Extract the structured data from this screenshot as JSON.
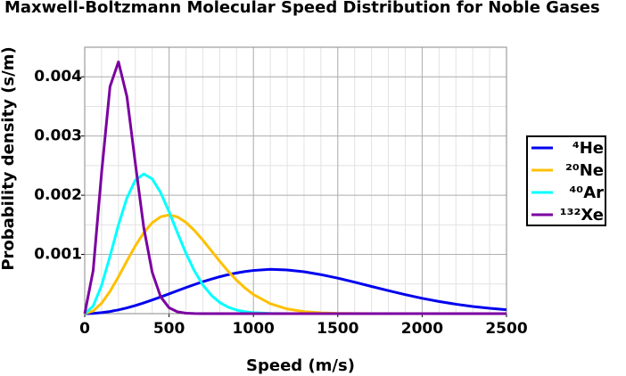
{
  "chart_data": {
    "type": "line",
    "title": "Maxwell-Boltzmann Molecular Speed Distribution for Noble Gases",
    "x_label": "Speed (m/s)",
    "y_label": "Probability density (s/m)",
    "x": [
      0,
      50,
      100,
      150,
      200,
      250,
      300,
      350,
      400,
      450,
      500,
      550,
      600,
      650,
      700,
      750,
      800,
      850,
      900,
      950,
      1000,
      1100,
      1200,
      1300,
      1400,
      1500,
      1600,
      1700,
      1800,
      1900,
      2000,
      2100,
      2200,
      2300,
      2400,
      2500
    ],
    "series": [
      {
        "name": "⁴He",
        "color": "#0000ee",
        "values": [
          0,
          4e-06,
          1.62e-05,
          3.62e-05,
          6.34e-05,
          9.73e-05,
          0.000137,
          0.000182,
          0.00023,
          0.000281,
          0.000334,
          0.000388,
          0.00044,
          0.000491,
          0.000539,
          0.000583,
          0.000623,
          0.000658,
          0.000687,
          0.000711,
          0.000729,
          0.000749,
          0.000737,
          0.000707,
          0.000659,
          0.000599,
          0.000531,
          0.000459,
          0.000388,
          0.000321,
          0.000259,
          0.000205,
          0.000159,
          0.000121,
          9.02e-05,
          6.59e-05
        ]
      },
      {
        "name": "²⁰Ne",
        "color": "#ffc000",
        "values": [
          0,
          4.53e-05,
          0.000176,
          0.000376,
          0.000623,
          0.000889,
          0.001145,
          0.001367,
          0.001535,
          0.001636,
          0.001668,
          0.001633,
          0.001541,
          0.001405,
          0.001241,
          0.001063,
          0.000885,
          0.000716,
          0.000564,
          0.000433,
          0.000323,
          0.000168,
          7.89e-05,
          3.38e-05,
          1.32e-05,
          4.7e-06,
          1.5e-06,
          5e-07,
          0,
          0,
          0,
          0,
          0,
          0,
          0,
          0
        ]
      },
      {
        "name": "⁴⁰Ar",
        "color": "#00ffff",
        "values": [
          0,
          0.000127,
          0.000477,
          0.000971,
          0.001499,
          0.001953,
          0.002253,
          0.002359,
          0.002276,
          0.002044,
          0.00172,
          0.001363,
          0.001019,
          0.000722,
          0.000486,
          0.000311,
          0.000189,
          0.00011,
          6.07e-05,
          3.21e-05,
          1.62e-05,
          3.6e-06,
          7e-07,
          0,
          0,
          0,
          0,
          0,
          0,
          0,
          0,
          0,
          0,
          0,
          0,
          0
        ]
      },
      {
        "name": "¹³²Xe",
        "color": "#7b00a0",
        "values": [
          0,
          0.000726,
          0.002379,
          0.003836,
          0.004253,
          0.003669,
          0.002539,
          0.001453,
          0.000699,
          0.000285,
          9.92e-05,
          2.96e-05,
          7.6e-06,
          1.7e-06,
          3e-07,
          0,
          0,
          0,
          0,
          0,
          0,
          0,
          0,
          0,
          0,
          0,
          0,
          0,
          0,
          0,
          0,
          0,
          0,
          0,
          0,
          0
        ]
      }
    ],
    "xlim": [
      0,
      2500
    ],
    "xticks": [
      0,
      500,
      1000,
      1500,
      2000,
      2500
    ],
    "ylim": [
      0,
      0.0045
    ],
    "yticks": [
      0.001,
      0.002,
      0.003,
      0.004
    ],
    "grid": true,
    "minor_grid": true,
    "legend": "right"
  }
}
